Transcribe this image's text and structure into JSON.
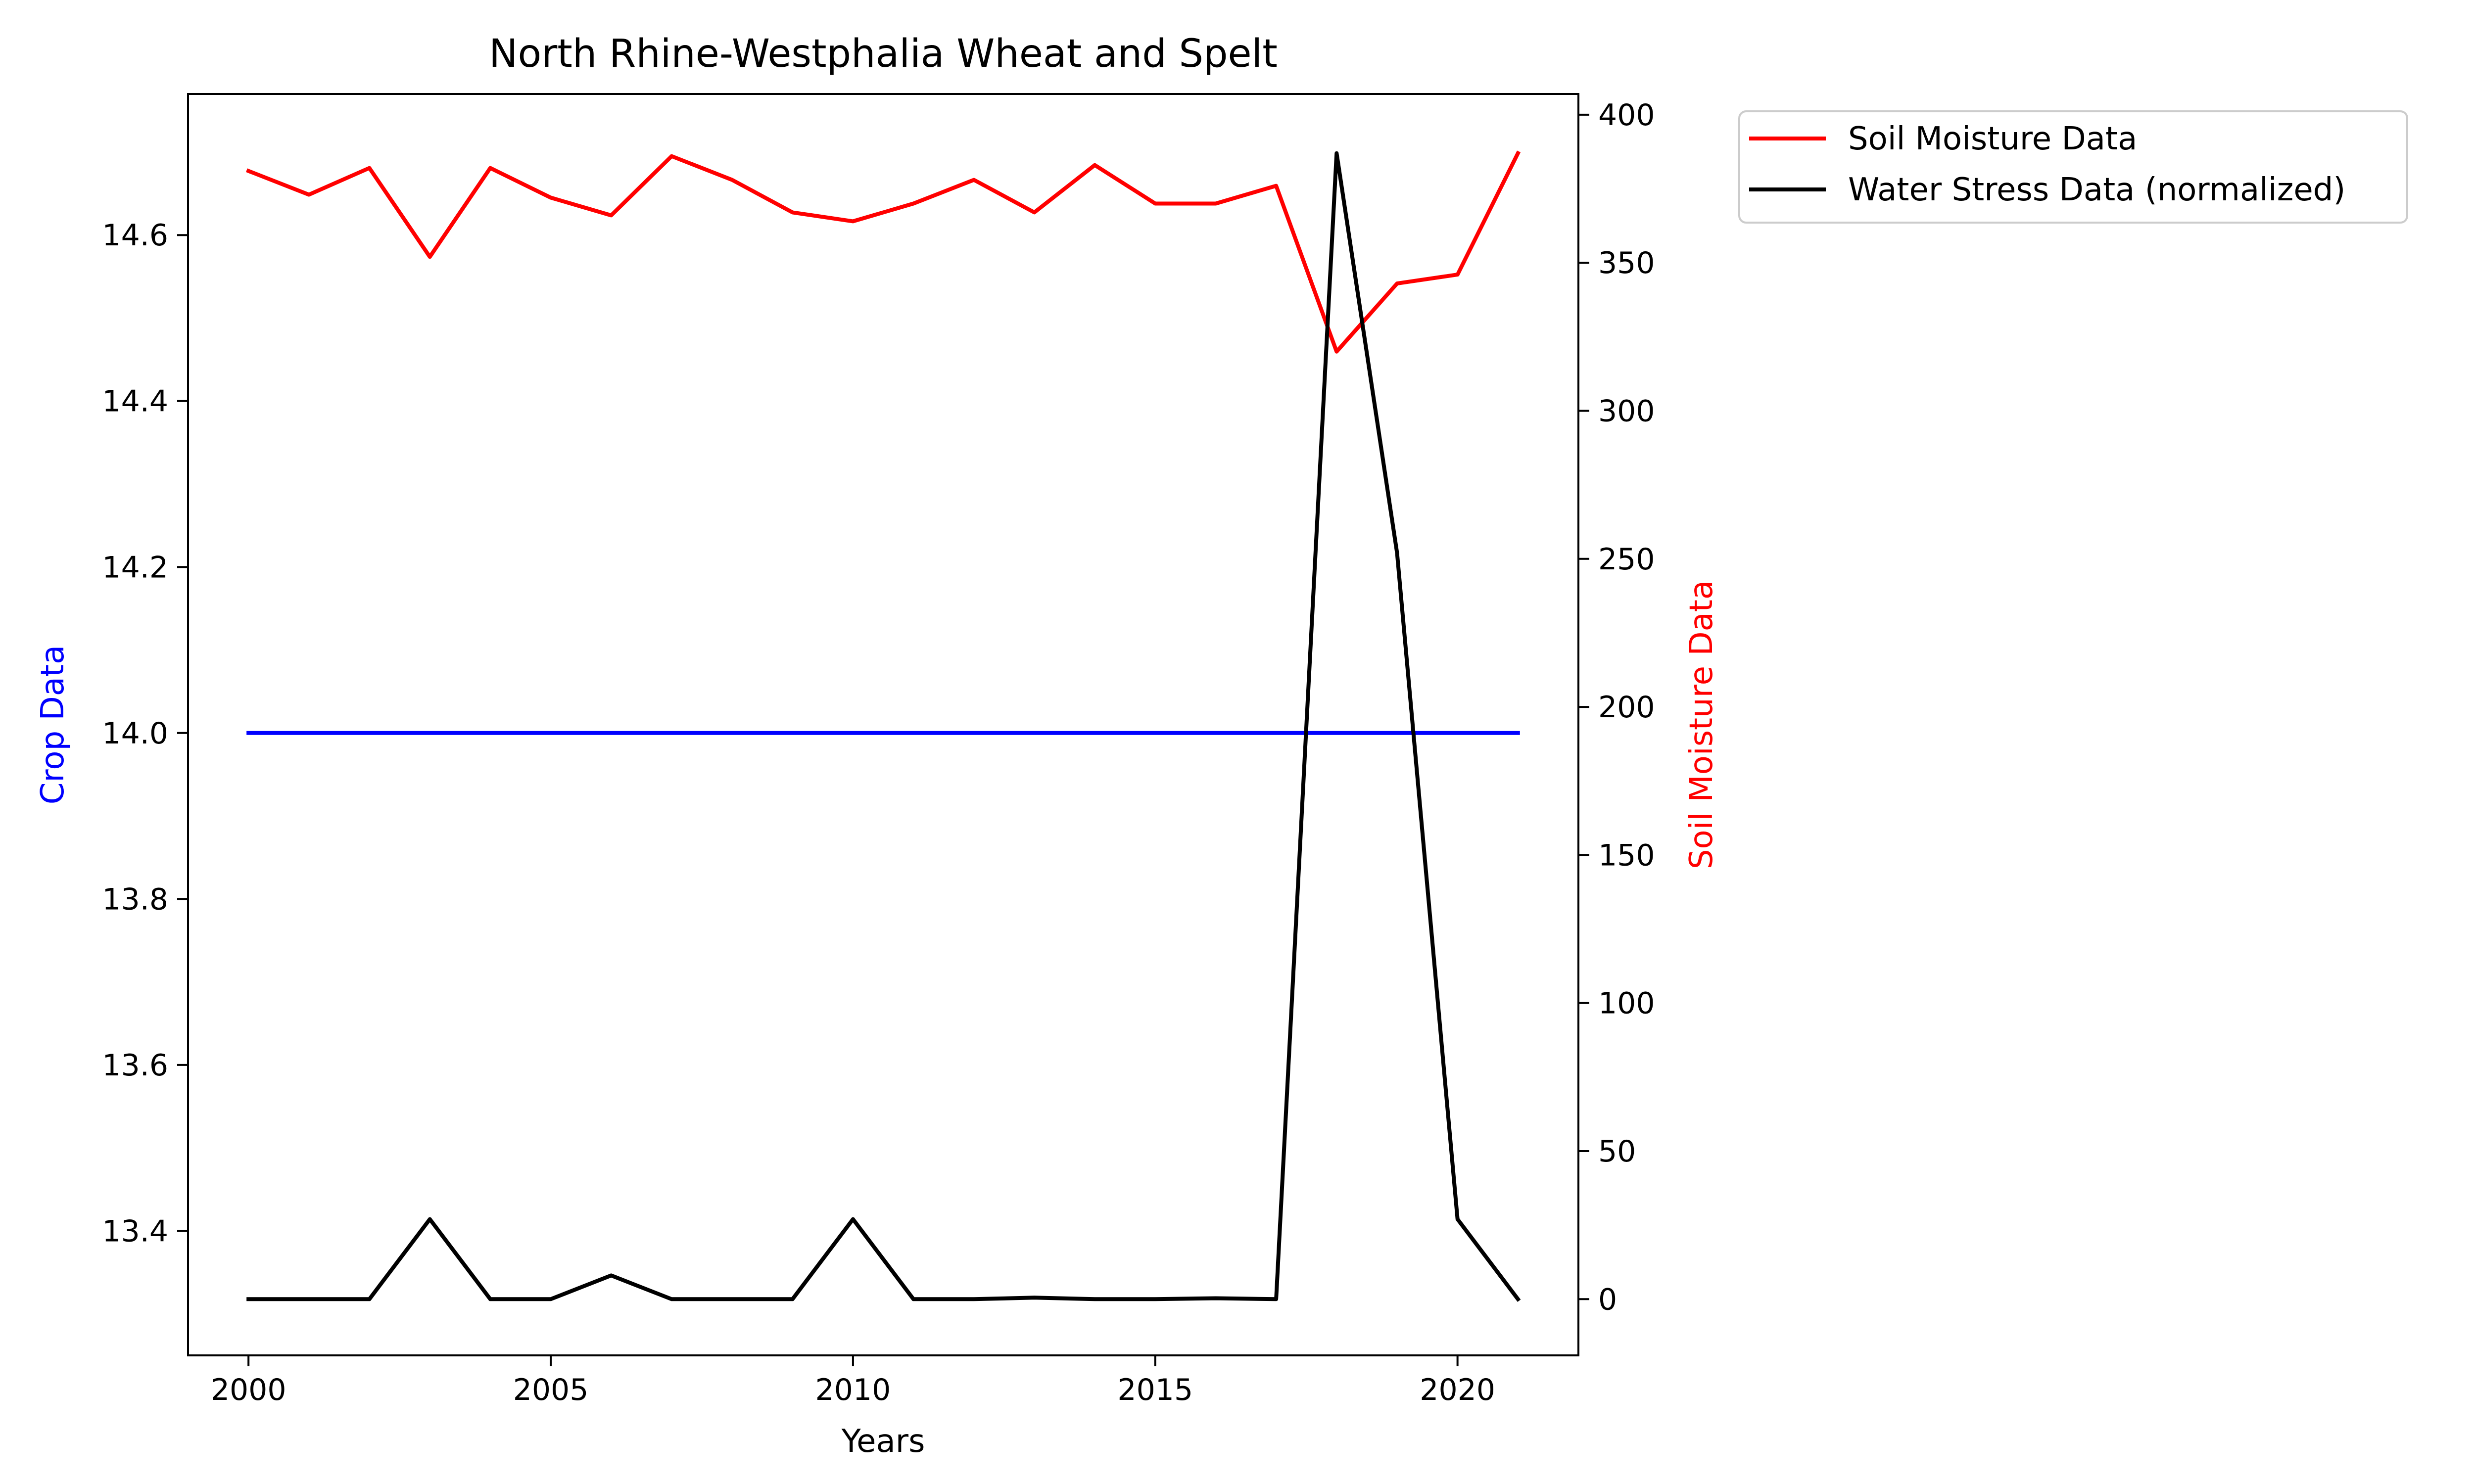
{
  "chart_data": {
    "type": "line",
    "title": "North Rhine-Westphalia Wheat and Spelt",
    "xlabel": "Years",
    "ylabel_left": "Crop Data",
    "ylabel_right": "Soil Moisture Data",
    "x": [
      2000,
      2001,
      2002,
      2003,
      2004,
      2005,
      2006,
      2007,
      2008,
      2009,
      2010,
      2011,
      2012,
      2013,
      2014,
      2015,
      2016,
      2017,
      2018,
      2019,
      2020,
      2021
    ],
    "x_ticks": [
      2000,
      2005,
      2010,
      2015,
      2020
    ],
    "xlim": [
      1999,
      2022
    ],
    "left_axis": {
      "ylim": [
        13.25,
        14.77
      ],
      "ticks": [
        13.4,
        13.6,
        13.8,
        14.0,
        14.2,
        14.4,
        14.6
      ],
      "tick_labels": [
        "13.4",
        "13.6",
        "13.8",
        "14.0",
        "14.2",
        "14.4",
        "14.6"
      ]
    },
    "right_axis": {
      "ylim": [
        -19,
        407
      ],
      "ticks": [
        0,
        50,
        100,
        150,
        200,
        250,
        300,
        350,
        400
      ],
      "tick_labels": [
        "0",
        "50",
        "100",
        "150",
        "200",
        "250",
        "300",
        "350",
        "400"
      ]
    },
    "series": [
      {
        "axis": "left",
        "color": "#0000ff",
        "values": [
          14.0,
          14.0,
          14.0,
          14.0,
          14.0,
          14.0,
          14.0,
          14.0,
          14.0,
          14.0,
          14.0,
          14.0,
          14.0,
          14.0,
          14.0,
          14.0,
          14.0,
          14.0,
          14.0,
          14.0,
          14.0,
          14.0
        ]
      },
      {
        "name": "Soil Moisture Data",
        "axis": "right",
        "color": "#ff0000",
        "values": [
          381,
          373,
          382,
          352,
          382,
          372,
          366,
          386,
          378,
          367,
          364,
          370,
          378,
          367,
          383,
          370,
          370,
          376,
          320,
          343,
          346,
          387
        ]
      },
      {
        "name": "Water Stress Data (normalized)",
        "axis": "right",
        "color": "#000000",
        "values": [
          0,
          0,
          0,
          27,
          0,
          0,
          8,
          0,
          0,
          0,
          27,
          0,
          0,
          0.5,
          0,
          0,
          0.3,
          0,
          387,
          252,
          27,
          0
        ]
      }
    ],
    "legend": {
      "placement": "outside-right-top",
      "entries": [
        "Soil Moisture Data",
        "Water Stress Data (normalized)"
      ]
    },
    "grid": false
  }
}
